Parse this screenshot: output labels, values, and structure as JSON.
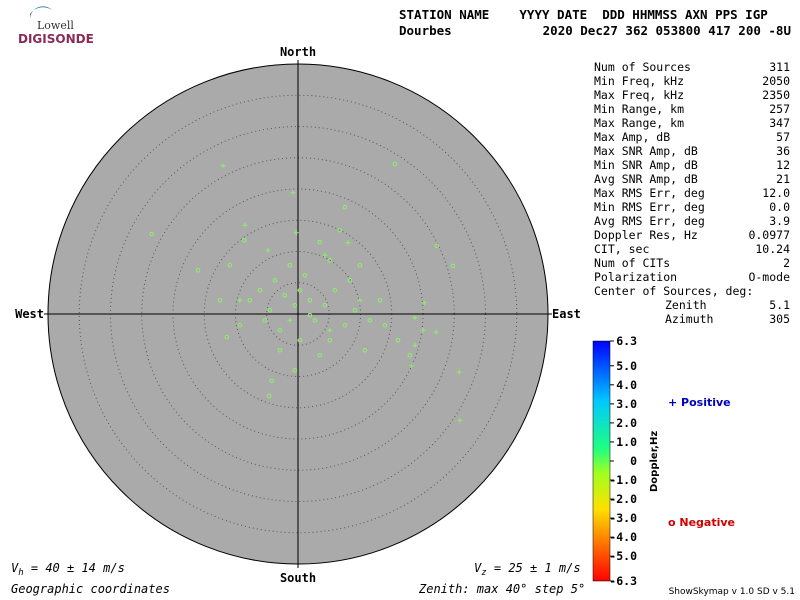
{
  "header": {
    "logo_top": "Lowell",
    "logo_bottom": "DIGISONDE",
    "columns": "STATION NAME    YYYY DATE  DDD HHMMSS AXN PPS IGP",
    "station": "Dourbes",
    "values": "2020 Dec27 362 053800 417 200 -8U"
  },
  "stats": [
    {
      "label": "Num of Sources",
      "value": "311"
    },
    {
      "label": "Min Freq, kHz",
      "value": "2050"
    },
    {
      "label": "Max Freq, kHz",
      "value": "2350"
    },
    {
      "label": "Min Range, km",
      "value": "257"
    },
    {
      "label": "Max Range, km",
      "value": "347"
    },
    {
      "label": "Max Amp, dB",
      "value": "57"
    },
    {
      "label": "Max SNR Amp, dB",
      "value": "36"
    },
    {
      "label": "Min SNR Amp, dB",
      "value": "12"
    },
    {
      "label": "Avg SNR Amp, dB",
      "value": "21"
    },
    {
      "label": "Max RMS Err, deg",
      "value": "12.0"
    },
    {
      "label": "Min RMS Err, deg",
      "value": "0.0"
    },
    {
      "label": "Avg RMS Err, deg",
      "value": "3.9"
    },
    {
      "label": "Doppler Res, Hz",
      "value": "0.0977"
    },
    {
      "label": "CIT, sec",
      "value": "10.24"
    },
    {
      "label": "Num of CITs",
      "value": "2"
    },
    {
      "label": "Polarization",
      "value": "O-mode"
    }
  ],
  "center": {
    "title": "Center of Sources, deg:",
    "zenith_label": "Zenith",
    "zenith": "5.1",
    "azimuth_label": "Azimuth",
    "azimuth": "305"
  },
  "chart_data": {
    "type": "skymap",
    "directions": {
      "north": "North",
      "south": "South",
      "east": "East",
      "west": "West"
    },
    "zenith_max": 40,
    "zenith_step": 5,
    "points": [
      {
        "x": 15.5,
        "y": 24,
        "marker": "o"
      },
      {
        "x": -23.4,
        "y": 12.8,
        "marker": "o"
      },
      {
        "x": -16,
        "y": 7,
        "marker": "o"
      },
      {
        "x": -4.6,
        "y": -13.1,
        "marker": "o"
      },
      {
        "x": -4.2,
        "y": -10.7,
        "marker": "o"
      },
      {
        "x": -11.4,
        "y": -3.7,
        "marker": "o"
      },
      {
        "x": -8.6,
        "y": 11.8,
        "marker": "o"
      },
      {
        "x": -1.3,
        "y": 7.8,
        "marker": "o"
      },
      {
        "x": 3.5,
        "y": 11.5,
        "marker": "o"
      },
      {
        "x": 7.5,
        "y": 17.1,
        "marker": "o"
      },
      {
        "x": 6.7,
        "y": 13.4,
        "marker": "o"
      },
      {
        "x": 22.2,
        "y": 10.9,
        "marker": "o"
      },
      {
        "x": 24.8,
        "y": 7.7,
        "marker": "o"
      },
      {
        "x": 13.1,
        "y": 2.2,
        "marker": "o"
      },
      {
        "x": 16,
        "y": -4.2,
        "marker": "o"
      },
      {
        "x": 17.9,
        "y": -6.6,
        "marker": "o"
      },
      {
        "x": 10.7,
        "y": -5.8,
        "marker": "o"
      },
      {
        "x": 5.1,
        "y": -4.2,
        "marker": "o"
      },
      {
        "x": 1.9,
        "y": 2.2,
        "marker": "o"
      },
      {
        "x": 0.3,
        "y": 3.8,
        "marker": "o"
      },
      {
        "x": -2.1,
        "y": 3,
        "marker": "o"
      },
      {
        "x": -3.7,
        "y": 5.4,
        "marker": "o"
      },
      {
        "x": -6.1,
        "y": 3.8,
        "marker": "o"
      },
      {
        "x": -7.7,
        "y": 2.2,
        "marker": "o"
      },
      {
        "x": -9.3,
        "y": -1.8,
        "marker": "o"
      },
      {
        "x": -5.3,
        "y": -1,
        "marker": "o"
      },
      {
        "x": -2.9,
        "y": -2.6,
        "marker": "o"
      },
      {
        "x": 0.3,
        "y": -4.2,
        "marker": "o"
      },
      {
        "x": 2.7,
        "y": -1,
        "marker": "o"
      },
      {
        "x": 4.3,
        "y": 1.4,
        "marker": "o"
      },
      {
        "x": 5.9,
        "y": 3.8,
        "marker": "o"
      },
      {
        "x": 8.3,
        "y": 5.4,
        "marker": "o"
      },
      {
        "x": 9.1,
        "y": 0.6,
        "marker": "o"
      },
      {
        "x": 7.5,
        "y": -1.8,
        "marker": "o"
      },
      {
        "x": 11.5,
        "y": -1,
        "marker": "o"
      },
      {
        "x": 13.9,
        "y": -1.8,
        "marker": "o"
      },
      {
        "x": -10.9,
        "y": 7.8,
        "marker": "o"
      },
      {
        "x": -12.5,
        "y": 2.2,
        "marker": "o"
      },
      {
        "x": -0.5,
        "y": -9,
        "marker": "o"
      },
      {
        "x": 3.5,
        "y": -6.6,
        "marker": "o"
      },
      {
        "x": -2.9,
        "y": -5.8,
        "marker": "o"
      },
      {
        "x": 1.1,
        "y": 6.2,
        "marker": "o"
      },
      {
        "x": 5.1,
        "y": 8.6,
        "marker": "o"
      },
      {
        "x": 9.9,
        "y": 7.8,
        "marker": "o"
      },
      {
        "x": -4.5,
        "y": 0.6,
        "marker": "o"
      },
      {
        "x": 1.9,
        "y": -0.2,
        "marker": "o"
      },
      {
        "x": -0.5,
        "y": 1.4,
        "marker": "o"
      },
      {
        "x": -12,
        "y": 23.7,
        "marker": "+"
      },
      {
        "x": -0.8,
        "y": 19.4,
        "marker": "+"
      },
      {
        "x": -0.3,
        "y": 13,
        "marker": "+"
      },
      {
        "x": -8.5,
        "y": 14.2,
        "marker": "+"
      },
      {
        "x": 8,
        "y": 11.4,
        "marker": "+"
      },
      {
        "x": 20.2,
        "y": 1.8,
        "marker": "+"
      },
      {
        "x": 22.1,
        "y": -2.9,
        "marker": "+"
      },
      {
        "x": 20,
        "y": -2.6,
        "marker": "+"
      },
      {
        "x": 18.7,
        "y": -0.6,
        "marker": "+"
      },
      {
        "x": 18.7,
        "y": -5,
        "marker": "+"
      },
      {
        "x": 25.8,
        "y": -9.3,
        "marker": "+"
      },
      {
        "x": 25.9,
        "y": -17,
        "marker": "+"
      },
      {
        "x": 18.2,
        "y": -8.3,
        "marker": "+"
      },
      {
        "x": 4.3,
        "y": 9.4,
        "marker": "+"
      },
      {
        "x": -4.8,
        "y": 10.2,
        "marker": "+"
      },
      {
        "x": -9.3,
        "y": 2.2,
        "marker": "+"
      },
      {
        "x": 5.1,
        "y": -2.6,
        "marker": "+"
      },
      {
        "x": -1.3,
        "y": -1,
        "marker": "+"
      },
      {
        "x": 9.9,
        "y": 2.2,
        "marker": "+"
      }
    ],
    "point_color": "#8cf06a",
    "colorbar": {
      "title": "Doppler,Hz",
      "lim": [
        -6.3,
        6.3
      ],
      "ticks": [
        6.3,
        {
          "value": 5,
          "label": "5.0"
        },
        {
          "value": 4,
          "label": "4.0"
        },
        {
          "value": 3,
          "label": "3.0"
        },
        {
          "value": 2,
          "label": "2.0"
        },
        {
          "value": 1,
          "label": "1.0"
        },
        0,
        {
          "value": -1,
          "label": "-1.0"
        },
        {
          "value": -2,
          "label": "-2.0"
        },
        {
          "value": -3,
          "label": "-3.0"
        },
        {
          "value": -4,
          "label": "-4.0"
        },
        {
          "value": -5,
          "label": "-5.0"
        },
        -6.3
      ]
    },
    "legend": {
      "positive": "+ Positive",
      "negative": "o Negative"
    },
    "vh": {
      "symbol": "V",
      "sub": "h",
      "text": " = 40 ± 14 m/s"
    },
    "vz": {
      "symbol": "V",
      "sub": "z",
      "text": " = 25 ± 1 m/s"
    },
    "footer_left": "Geographic coordinates",
    "footer_center": "Zenith: max 40°  step 5°",
    "footer_right": "ShowSkymap v 1.0   SD v 5.1"
  }
}
